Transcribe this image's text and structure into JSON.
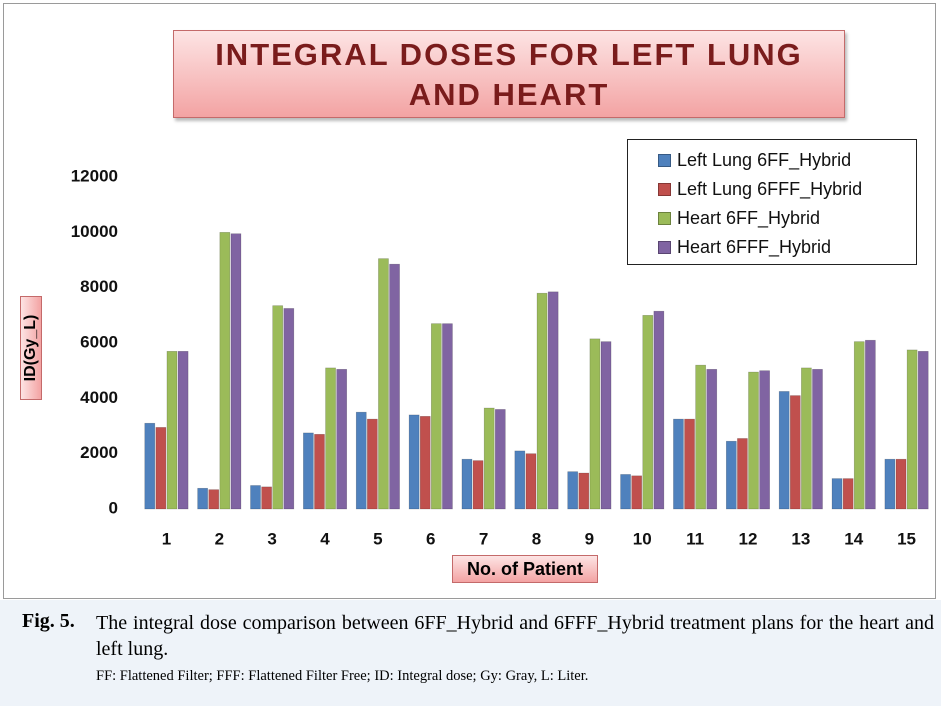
{
  "chart_data": {
    "type": "bar",
    "title": "INTEGRAL DOSES FOR LEFT LUNG AND HEART",
    "x_label": "No. of Patient",
    "y_label": "ID(Gy_L)",
    "categories": [
      "1",
      "2",
      "3",
      "4",
      "5",
      "6",
      "7",
      "8",
      "9",
      "10",
      "11",
      "12",
      "13",
      "14",
      "15"
    ],
    "series": [
      {
        "name": "Left Lung  6FF_Hybrid",
        "color": "#4f81bd",
        "values": [
          3100,
          750,
          850,
          2750,
          3500,
          3400,
          1800,
          2100,
          1350,
          1250,
          3250,
          2450,
          4250,
          1100,
          1800
        ]
      },
      {
        "name": "Left Lung  6FFF_Hybrid",
        "color": "#c0504d",
        "values": [
          2950,
          700,
          800,
          2700,
          3250,
          3350,
          1750,
          2000,
          1300,
          1200,
          3250,
          2550,
          4100,
          1100,
          1800
        ]
      },
      {
        "name": "Heart 6FF_Hybrid",
        "color": "#9bbb59",
        "values": [
          5700,
          10000,
          7350,
          5100,
          9050,
          6700,
          3650,
          7800,
          6150,
          7000,
          5200,
          4950,
          5100,
          6050,
          5750
        ]
      },
      {
        "name": "Heart 6FFF_Hybrid",
        "color": "#8064a2",
        "values": [
          5700,
          9950,
          7250,
          5050,
          8850,
          6700,
          3600,
          7850,
          6050,
          7150,
          5050,
          5000,
          5050,
          6100,
          5700
        ]
      }
    ],
    "ylim": [
      0,
      12000
    ],
    "yticks": [
      0,
      2000,
      4000,
      6000,
      8000,
      10000,
      12000
    ],
    "legend": "upper right"
  },
  "caption": {
    "label": "Fig. 5.",
    "text": "The integral dose comparison between 6FF_Hybrid and 6FFF_Hybrid treatment plans for the heart and left lung.",
    "note": "FF: Flattened Filter; FFF: Flattened Filter Free; ID: Integral dose; Gy: Gray, L: Liter."
  }
}
